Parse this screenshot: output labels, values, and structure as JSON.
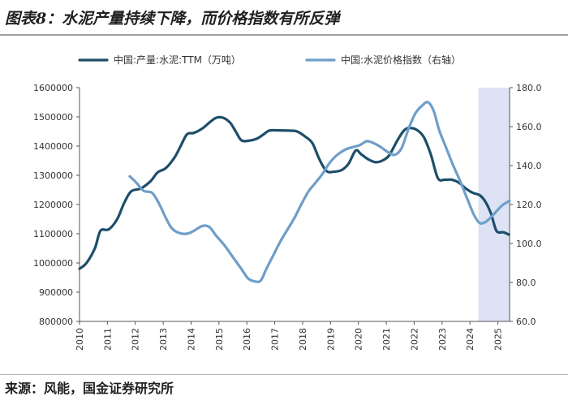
{
  "header": {
    "title": "图表8：水泥产量持续下降，而价格指数有所反弹"
  },
  "footer": {
    "source": "来源：风能，国金证券研究所"
  },
  "chart_data": {
    "type": "line",
    "x_ticks": [
      "2010",
      "2011",
      "2012",
      "2013",
      "2014",
      "2015",
      "2016",
      "2017",
      "2018",
      "2019",
      "2020",
      "2021",
      "2022",
      "2023",
      "2024",
      "2025"
    ],
    "y_left": {
      "ticks": [
        "800000",
        "900000",
        "1000000",
        "1100000",
        "1200000",
        "1300000",
        "1400000",
        "1500000",
        "1600000"
      ],
      "lim": [
        800000,
        1600000
      ]
    },
    "y_right": {
      "ticks": [
        "60.0",
        "80.0",
        "100.0",
        "120.0",
        "140.0",
        "160.0",
        "180.0"
      ],
      "lim": [
        60,
        180
      ]
    },
    "x_lim": [
      2010.0,
      2025.42
    ],
    "shaded_region": [
      2024.3,
      2025.42
    ],
    "legend_position": "top",
    "grid": false,
    "series": [
      {
        "name": "中国:产量:水泥:TTM（万吨）",
        "axis": "left",
        "color": "#1d4e6a",
        "points": [
          [
            2010.0,
            980000
          ],
          [
            2010.25,
            1000000
          ],
          [
            2010.55,
            1050000
          ],
          [
            2010.75,
            1110000
          ],
          [
            2011.05,
            1115000
          ],
          [
            2011.35,
            1150000
          ],
          [
            2011.6,
            1205000
          ],
          [
            2011.85,
            1245000
          ],
          [
            2012.2,
            1255000
          ],
          [
            2012.55,
            1280000
          ],
          [
            2012.8,
            1310000
          ],
          [
            2013.1,
            1325000
          ],
          [
            2013.4,
            1360000
          ],
          [
            2013.6,
            1395000
          ],
          [
            2013.85,
            1440000
          ],
          [
            2014.1,
            1445000
          ],
          [
            2014.4,
            1460000
          ],
          [
            2014.65,
            1480000
          ],
          [
            2014.9,
            1497000
          ],
          [
            2015.15,
            1497000
          ],
          [
            2015.4,
            1480000
          ],
          [
            2015.6,
            1450000
          ],
          [
            2015.8,
            1420000
          ],
          [
            2016.05,
            1418000
          ],
          [
            2016.35,
            1425000
          ],
          [
            2016.6,
            1440000
          ],
          [
            2016.8,
            1453000
          ],
          [
            2017.1,
            1454000
          ],
          [
            2017.5,
            1453000
          ],
          [
            2017.8,
            1450000
          ],
          [
            2018.1,
            1432000
          ],
          [
            2018.35,
            1410000
          ],
          [
            2018.6,
            1355000
          ],
          [
            2018.85,
            1315000
          ],
          [
            2019.1,
            1312000
          ],
          [
            2019.4,
            1318000
          ],
          [
            2019.65,
            1340000
          ],
          [
            2019.9,
            1385000
          ],
          [
            2020.1,
            1372000
          ],
          [
            2020.35,
            1355000
          ],
          [
            2020.6,
            1345000
          ],
          [
            2020.85,
            1350000
          ],
          [
            2021.1,
            1368000
          ],
          [
            2021.4,
            1420000
          ],
          [
            2021.65,
            1455000
          ],
          [
            2021.85,
            1462000
          ],
          [
            2022.1,
            1455000
          ],
          [
            2022.35,
            1430000
          ],
          [
            2022.6,
            1370000
          ],
          [
            2022.85,
            1290000
          ],
          [
            2023.1,
            1285000
          ],
          [
            2023.35,
            1285000
          ],
          [
            2023.6,
            1275000
          ],
          [
            2023.85,
            1255000
          ],
          [
            2024.1,
            1240000
          ],
          [
            2024.35,
            1232000
          ],
          [
            2024.55,
            1210000
          ],
          [
            2024.75,
            1170000
          ],
          [
            2024.95,
            1110000
          ],
          [
            2025.2,
            1105000
          ],
          [
            2025.4,
            1097000
          ]
        ]
      },
      {
        "name": "中国:水泥价格指数（右轴）",
        "axis": "right",
        "color": "#6f9ec8",
        "points": [
          [
            2011.8,
            134.5
          ],
          [
            2012.05,
            131.0
          ],
          [
            2012.3,
            127.0
          ],
          [
            2012.6,
            126.0
          ],
          [
            2012.85,
            120.5
          ],
          [
            2013.1,
            113.0
          ],
          [
            2013.3,
            108.0
          ],
          [
            2013.55,
            105.5
          ],
          [
            2013.85,
            105.0
          ],
          [
            2014.1,
            106.5
          ],
          [
            2014.4,
            109.0
          ],
          [
            2014.65,
            108.5
          ],
          [
            2014.9,
            104.0
          ],
          [
            2015.2,
            99.0
          ],
          [
            2015.5,
            93.0
          ],
          [
            2015.8,
            87.0
          ],
          [
            2016.05,
            82.0
          ],
          [
            2016.3,
            80.5
          ],
          [
            2016.5,
            81.0
          ],
          [
            2016.7,
            87.0
          ],
          [
            2016.95,
            94.0
          ],
          [
            2017.2,
            101.0
          ],
          [
            2017.45,
            107.0
          ],
          [
            2017.7,
            113.0
          ],
          [
            2017.95,
            120.0
          ],
          [
            2018.2,
            126.5
          ],
          [
            2018.45,
            131.0
          ],
          [
            2018.7,
            135.5
          ],
          [
            2018.95,
            141.0
          ],
          [
            2019.2,
            145.0
          ],
          [
            2019.5,
            148.0
          ],
          [
            2019.8,
            149.5
          ],
          [
            2020.05,
            150.5
          ],
          [
            2020.3,
            152.5
          ],
          [
            2020.55,
            151.5
          ],
          [
            2020.8,
            149.5
          ],
          [
            2021.05,
            147.0
          ],
          [
            2021.3,
            145.5
          ],
          [
            2021.55,
            149.0
          ],
          [
            2021.8,
            159.0
          ],
          [
            2022.05,
            167.0
          ],
          [
            2022.3,
            171.0
          ],
          [
            2022.5,
            172.5
          ],
          [
            2022.7,
            168.0
          ],
          [
            2022.9,
            158.0
          ],
          [
            2023.15,
            149.0
          ],
          [
            2023.4,
            140.0
          ],
          [
            2023.65,
            132.0
          ],
          [
            2023.9,
            123.0
          ],
          [
            2024.15,
            114.5
          ],
          [
            2024.35,
            110.5
          ],
          [
            2024.55,
            111.0
          ],
          [
            2024.75,
            113.5
          ],
          [
            2024.95,
            116.5
          ],
          [
            2025.15,
            119.5
          ],
          [
            2025.42,
            122.0
          ]
        ]
      }
    ]
  }
}
